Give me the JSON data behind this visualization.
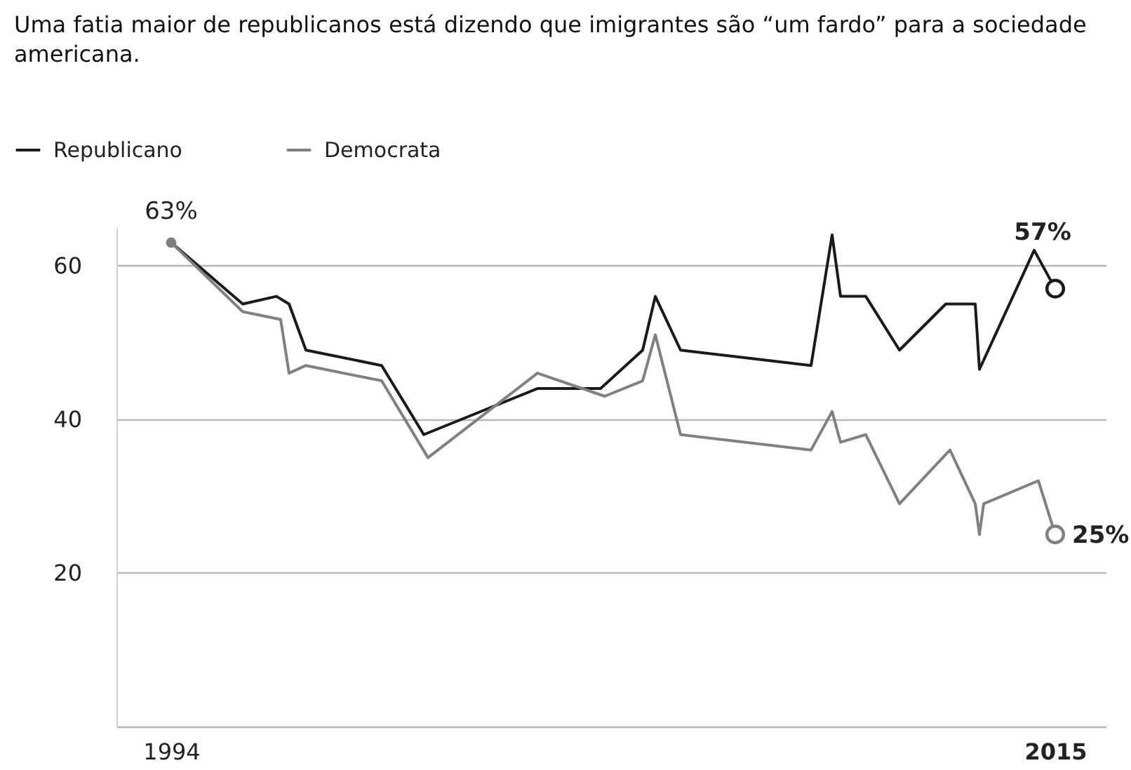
{
  "chart_data": {
    "type": "line",
    "title": "Uma fatia maior de republicanos está dizendo que imigrantes são “um fardo” para a sociedade americana.",
    "xlim": [
      1992.7,
      2016.2
    ],
    "xticks": [
      1994,
      2015
    ],
    "ylim": [
      0,
      65
    ],
    "yticks": [
      20,
      40,
      60
    ],
    "grid": "y",
    "legend": "top left",
    "series": [
      {
        "name": "Republicano",
        "color": "#1a1a1a",
        "x": [
          1994,
          1995.7,
          1996.5,
          1996.8,
          1997.2,
          1999.0,
          2000.0,
          2002.7,
          2004.2,
          2005.2,
          2005.5,
          2006.1,
          2009.2,
          2009.7,
          2009.9,
          2010.5,
          2011.3,
          2012.4,
          2013.1,
          2013.2,
          2014.5,
          2015
        ],
        "values": [
          63,
          55,
          56,
          55,
          49,
          47,
          38,
          44,
          44,
          49,
          56,
          49,
          47,
          64,
          56,
          56,
          49,
          55,
          55,
          46.5,
          62,
          57
        ],
        "value_labels": [
          null,
          null,
          null,
          null,
          null,
          null,
          null,
          null,
          null,
          null,
          null,
          null,
          null,
          null,
          null,
          null,
          null,
          null,
          null,
          null,
          null,
          "57%"
        ]
      },
      {
        "name": "Democrata",
        "color": "#808080",
        "x": [
          1994,
          1995.7,
          1996.6,
          1996.8,
          1997.2,
          1999.0,
          2000.1,
          2002.7,
          2004.3,
          2005.2,
          2005.5,
          2006.1,
          2009.2,
          2009.7,
          2009.9,
          2010.5,
          2011.3,
          2012.5,
          2013.1,
          2013.2,
          2013.3,
          2014.6,
          2015
        ],
        "values": [
          63,
          54,
          53,
          46,
          47,
          45,
          35,
          46,
          43,
          45,
          51,
          38,
          36,
          41,
          37,
          38,
          29,
          36,
          29,
          25,
          29,
          32,
          25
        ],
        "value_labels": [
          "63%",
          null,
          null,
          null,
          null,
          null,
          null,
          null,
          null,
          null,
          null,
          null,
          null,
          null,
          null,
          null,
          null,
          null,
          null,
          null,
          null,
          null,
          "25%"
        ]
      }
    ]
  }
}
